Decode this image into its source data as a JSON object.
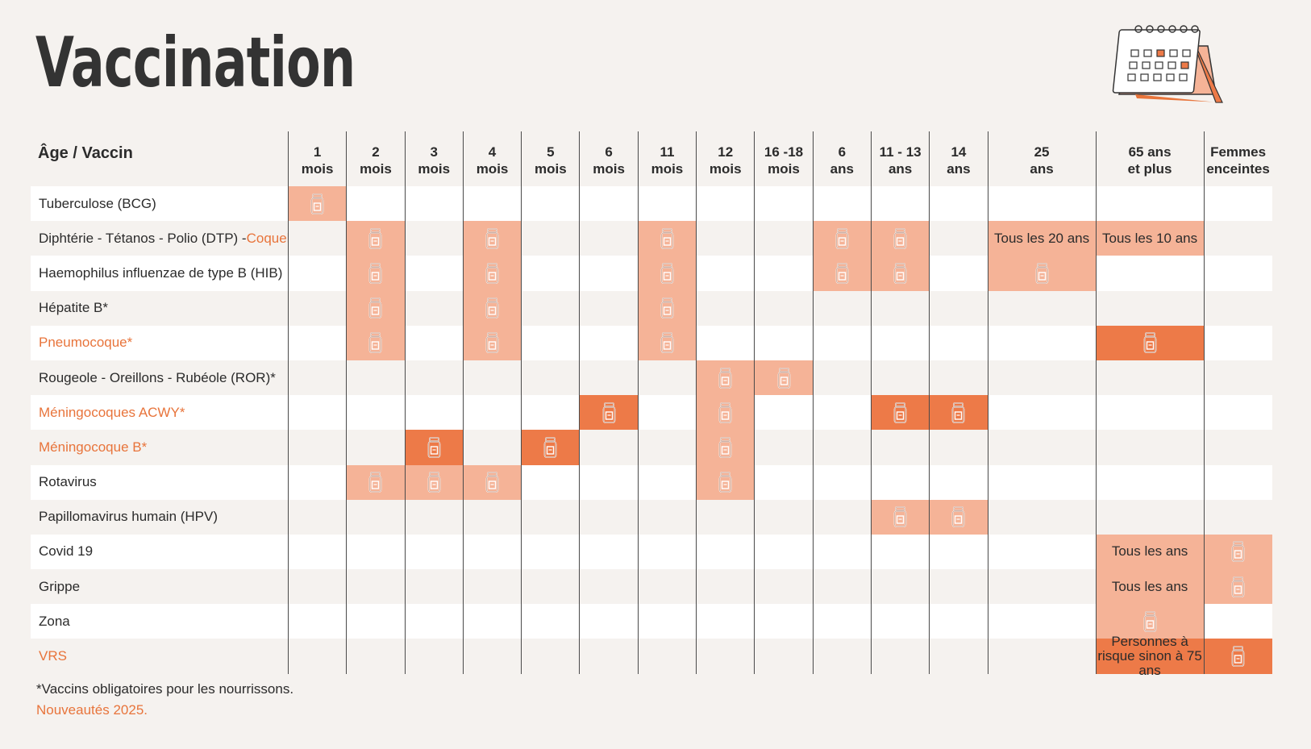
{
  "title": "Vaccination",
  "colors": {
    "light": "#f5b397",
    "dark": "#ed7a48",
    "accent_text": "#e8743b",
    "background": "#f5f2ef"
  },
  "header": {
    "corner": "Âge / Vaccin",
    "columns": [
      [
        "1",
        "mois"
      ],
      [
        "2",
        "mois"
      ],
      [
        "3",
        "mois"
      ],
      [
        "4",
        "mois"
      ],
      [
        "5",
        "mois"
      ],
      [
        "6",
        "mois"
      ],
      [
        "11",
        "mois"
      ],
      [
        "12",
        "mois"
      ],
      [
        "16 -18",
        "mois"
      ],
      [
        "6",
        "ans"
      ],
      [
        "11 - 13",
        "ans"
      ],
      [
        "14",
        "ans"
      ],
      [
        "25",
        "ans"
      ],
      [
        "65 ans",
        "et plus"
      ],
      [
        "Femmes",
        "enceintes"
      ]
    ]
  },
  "rows": [
    {
      "name": "Tuberculose (BCG)",
      "orange": false,
      "cells": {
        "0": "L"
      }
    },
    {
      "name": "Diphtérie - Tétanos - Polio (DTP) - ",
      "name_extra": "Coqueluche",
      "orange": false,
      "cells": {
        "1": "L",
        "3": "L",
        "6": "L",
        "9": "L",
        "10": "L"
      },
      "texts": {
        "12": {
          "t": "Tous les 20 ans",
          "c": "L"
        },
        "13": {
          "t": "Tous les 10 ans",
          "c": "L"
        }
      }
    },
    {
      "name": "Haemophilus influenzae de type B (HIB)",
      "orange": false,
      "cells": {
        "1": "L",
        "3": "L",
        "6": "L",
        "9": "L",
        "10": "L",
        "12": "L"
      }
    },
    {
      "name": "Hépatite B*",
      "orange": false,
      "cells": {
        "1": "L",
        "3": "L",
        "6": "L"
      }
    },
    {
      "name": "Pneumocoque*",
      "orange": true,
      "cells": {
        "1": "L",
        "3": "L",
        "6": "L",
        "13": "D"
      }
    },
    {
      "name": "Rougeole - Oreillons - Rubéole (ROR)*",
      "orange": false,
      "cells": {
        "7": "L",
        "8": "L"
      }
    },
    {
      "name": "Méningocoques ACWY*",
      "orange": true,
      "cells": {
        "5": "D",
        "7": "L",
        "10": "D",
        "11": "D"
      }
    },
    {
      "name": "Méningocoque B*",
      "orange": true,
      "cells": {
        "2": "D",
        "4": "D",
        "7": "L"
      }
    },
    {
      "name": "Rotavirus",
      "orange": false,
      "cells": {
        "1": "L",
        "2": "L",
        "3": "L",
        "7": "L"
      }
    },
    {
      "name": "Papillomavirus humain  (HPV)",
      "orange": false,
      "cells": {
        "10": "L",
        "11": "L"
      }
    },
    {
      "name": "Covid 19",
      "orange": false,
      "cells": {
        "14": "L"
      },
      "texts": {
        "13": {
          "t": "Tous les ans",
          "c": "L"
        }
      }
    },
    {
      "name": "Grippe",
      "orange": false,
      "cells": {
        "14": "L"
      },
      "texts": {
        "13": {
          "t": "Tous les ans",
          "c": "L"
        }
      }
    },
    {
      "name": "Zona",
      "orange": false,
      "cells": {
        "13": "L"
      }
    },
    {
      "name": "VRS",
      "orange": true,
      "cells": {
        "14": "D"
      },
      "texts": {
        "13": {
          "t": "Personnes à risque sinon à 75 ans",
          "c": "D"
        }
      }
    }
  ],
  "footnote": "*Vaccins obligatoires pour les nourrissons.",
  "footnote_new": "Nouveautés 2025.",
  "icons": {
    "vial": "vaccine-vial-icon",
    "calendar": "calendar-icon",
    "bird": "robin-bird-icon"
  }
}
